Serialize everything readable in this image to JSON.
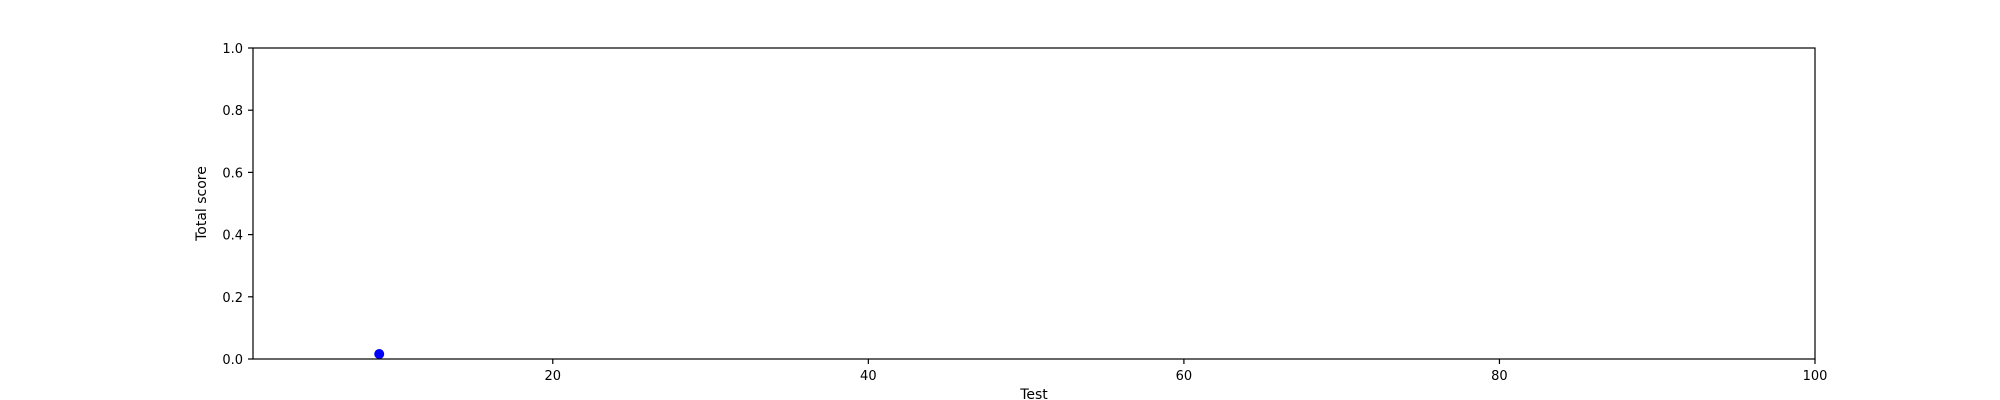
{
  "chart_data": {
    "type": "scatter",
    "title": "",
    "xlabel": "Test",
    "ylabel": "Total score",
    "xlim": [
      1,
      100
    ],
    "ylim": [
      0.0,
      1.0
    ],
    "xticks": [
      20,
      40,
      60,
      80,
      100
    ],
    "yticks": [
      "0.0",
      "0.2",
      "0.4",
      "0.6",
      "0.8",
      "1.0"
    ],
    "grid": false,
    "legend": "none",
    "series": [
      {
        "color": "#0000ff",
        "points": [
          {
            "x": 9,
            "y": 0.016
          }
        ]
      }
    ]
  }
}
